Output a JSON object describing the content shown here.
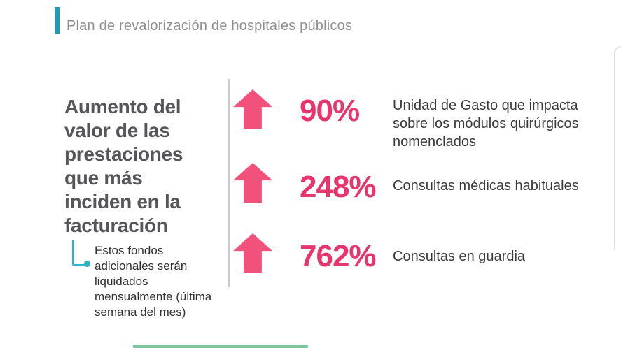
{
  "slide": {
    "title": "Plan de revalorización de hospitales públicos",
    "heading": "Aumento del valor de las prestaciones que más inciden en la facturación",
    "note": "Estos fondos adicionales serán liquidados mensualmente (última semana del mes)",
    "stats": [
      {
        "value": "90%",
        "label": "Unidad de Gasto que impacta sobre los módulos quirúrgicos nomenclados"
      },
      {
        "value": "248%",
        "label": "Consultas médicas habituales"
      },
      {
        "value": "762%",
        "label": "Consultas en guardia"
      }
    ],
    "colors": {
      "accent_teal": "#1e9cb5",
      "connector_teal": "#2cb3c9",
      "arrow_pink": "#f1517a",
      "value_pink": "#e8356d",
      "title_gray": "#8e9093",
      "heading_gray": "#55555a",
      "body_text": "#3b3b3d",
      "divider_gray": "#c8cacb",
      "bottom_bar_green": "#55af7d"
    }
  }
}
